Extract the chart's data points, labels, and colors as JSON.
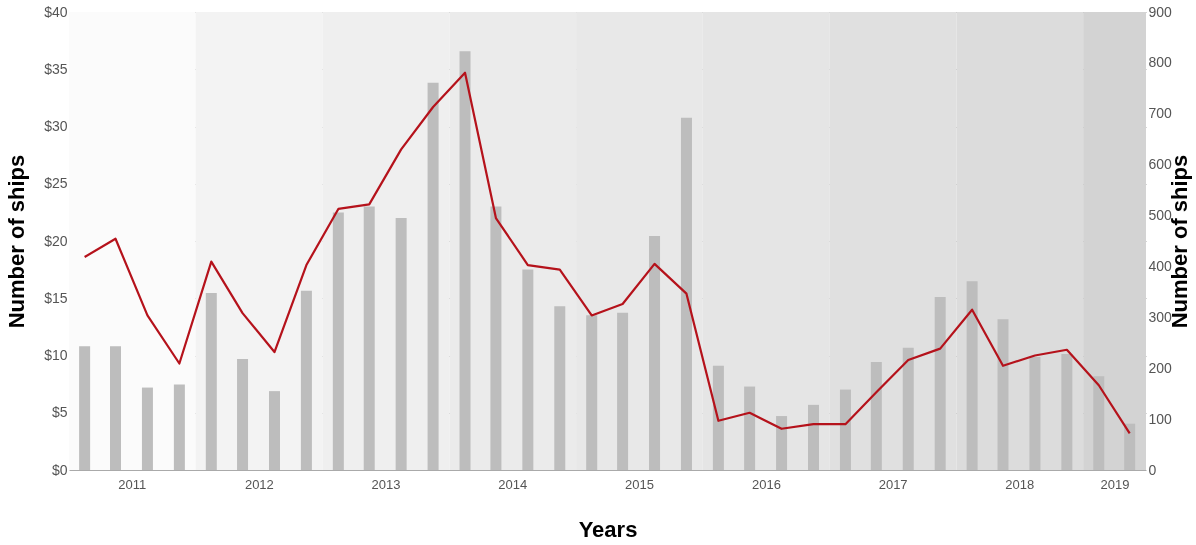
{
  "chart_data": {
    "type": "bar",
    "xlabel": "Years",
    "ylabel": "Number of ships",
    "y2label": "Number of ships",
    "x": [
      "2011-02-15",
      "2011-05-15",
      "2011-08-15",
      "2011-11-15",
      "2012-02-15",
      "2012-05-15",
      "2012-08-15",
      "2012-11-15",
      "2013-02-15",
      "2013-05-15",
      "2013-08-15",
      "2013-11-15",
      "2014-02-15",
      "2014-05-15",
      "2014-08-15",
      "2014-11-15",
      "2015-02-15",
      "2015-05-15",
      "2015-08-15",
      "2015-11-15",
      "2016-02-15",
      "2016-05-15",
      "2016-08-15",
      "2016-11-15",
      "2017-02-15",
      "2017-05-15",
      "2017-08-15",
      "2017-11-15",
      "2018-02-15",
      "2018-05-15",
      "2018-08-15",
      "2018-11-15",
      "2019-02-15",
      "2019-05-15"
    ],
    "xlim": [
      "2011-01-01",
      "2019-07-01"
    ],
    "xticks": [
      {
        "value": "2011-07-01",
        "label": "2011"
      },
      {
        "value": "2012-07-01",
        "label": "2012"
      },
      {
        "value": "2013-07-01",
        "label": "2013"
      },
      {
        "value": "2014-07-01",
        "label": "2014"
      },
      {
        "value": "2015-07-01",
        "label": "2015"
      },
      {
        "value": "2016-07-01",
        "label": "2016"
      },
      {
        "value": "2017-07-01",
        "label": "2017"
      },
      {
        "value": "2018-07-01",
        "label": "2018"
      },
      {
        "value": "2019-04-01",
        "label": "2019"
      }
    ],
    "ylim": [
      0,
      40
    ],
    "yticks": [
      {
        "value": 0,
        "label": "$0"
      },
      {
        "value": 5,
        "label": "$5"
      },
      {
        "value": 10,
        "label": "$10"
      },
      {
        "value": 15,
        "label": "$15"
      },
      {
        "value": 20,
        "label": "$20"
      },
      {
        "value": 25,
        "label": "$25"
      },
      {
        "value": 30,
        "label": "$30"
      },
      {
        "value": 35,
        "label": "$35"
      },
      {
        "value": 40,
        "label": "$40"
      }
    ],
    "y2lim": [
      0,
      900
    ],
    "y2ticks": [
      0,
      100,
      200,
      300,
      400,
      500,
      600,
      700,
      800,
      900
    ],
    "grid": "y",
    "series": [
      {
        "axis": "y2",
        "color": "#bdbdbd",
        "values": [
          243,
          243,
          162,
          168,
          348,
          218,
          155,
          352,
          506,
          518,
          495,
          761,
          823,
          518,
          394,
          322,
          304,
          309,
          460,
          692,
          205,
          164,
          106,
          128,
          158,
          212,
          240,
          340,
          371,
          296,
          222,
          228,
          184,
          91
        ]
      },
      {
        "type": "line",
        "axis": "y",
        "color": "#b5121b",
        "line_style": "solid",
        "values": [
          18.6,
          20.2,
          13.5,
          9.3,
          18.2,
          13.7,
          10.3,
          17.9,
          22.8,
          23.2,
          28.0,
          31.7,
          34.7,
          22.0,
          17.9,
          17.5,
          13.5,
          14.5,
          18.0,
          15.4,
          4.3,
          5.0,
          3.6,
          4.0,
          4.0,
          6.8,
          9.6,
          10.6,
          14.0,
          9.1,
          10.0,
          10.5,
          7.4,
          3.2
        ]
      }
    ],
    "bands": [
      {
        "axis": "x",
        "from": "2011-01-01",
        "to": "2012-01-01",
        "color": "#fbfbfb"
      },
      {
        "axis": "x",
        "from": "2012-01-01",
        "to": "2013-01-01",
        "color": "#f3f3f3"
      },
      {
        "axis": "x",
        "from": "2013-01-01",
        "to": "2014-01-01",
        "color": "#efefef"
      },
      {
        "axis": "x",
        "from": "2014-01-01",
        "to": "2015-01-01",
        "color": "#ebebeb"
      },
      {
        "axis": "x",
        "from": "2015-01-01",
        "to": "2016-01-01",
        "color": "#e8e8e8"
      },
      {
        "axis": "x",
        "from": "2016-01-01",
        "to": "2017-01-01",
        "color": "#e5e5e5"
      },
      {
        "axis": "x",
        "from": "2017-01-01",
        "to": "2018-01-01",
        "color": "#e0e0e0"
      },
      {
        "axis": "x",
        "from": "2018-01-01",
        "to": "2019-01-01",
        "color": "#dcdcdc"
      },
      {
        "axis": "x",
        "from": "2019-01-01",
        "to": "2019-07-01",
        "color": "#d3d3d3"
      }
    ]
  }
}
